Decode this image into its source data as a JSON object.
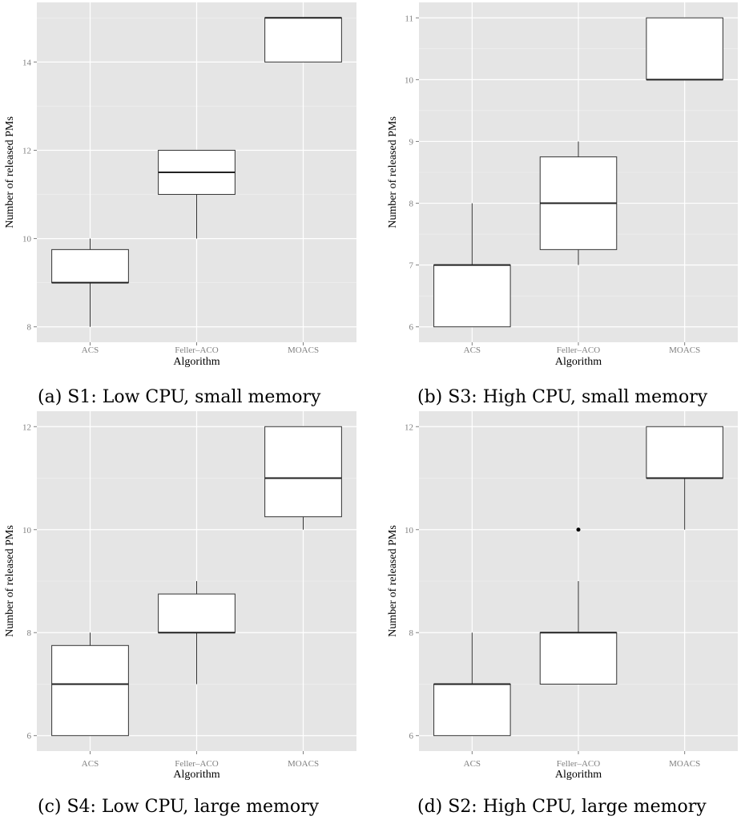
{
  "panels": [
    {
      "caption": "(a) S1: Low CPU, small memory",
      "chart_data": {
        "type": "boxplot",
        "categories": [
          "ACS",
          "Feller–ACO",
          "MOACS"
        ],
        "xlabel": "Algorithm",
        "ylabel": "Number of released PMs",
        "ylim": [
          7.65,
          15.35
        ],
        "yticks": [
          8,
          10,
          12,
          14
        ],
        "grid": true,
        "boxes": [
          {
            "category": "ACS",
            "min": 8,
            "q1": 9,
            "median": 9,
            "q3": 9.75,
            "max": 10,
            "outliers": []
          },
          {
            "category": "Feller–ACO",
            "min": 10,
            "q1": 11,
            "median": 11.5,
            "q3": 12,
            "max": 12,
            "outliers": []
          },
          {
            "category": "MOACS",
            "min": 14,
            "q1": 14,
            "median": 15,
            "q3": 15,
            "max": 15,
            "outliers": []
          }
        ]
      }
    },
    {
      "caption": "(b) S3: High CPU, small memory",
      "chart_data": {
        "type": "boxplot",
        "categories": [
          "ACS",
          "Feller–ACO",
          "MOACS"
        ],
        "xlabel": "Algorithm",
        "ylabel": "Number of released PMs",
        "ylim": [
          5.75,
          11.25
        ],
        "yticks": [
          6,
          7,
          8,
          9,
          10,
          11
        ],
        "grid": true,
        "boxes": [
          {
            "category": "ACS",
            "min": 6,
            "q1": 6,
            "median": 7,
            "q3": 7,
            "max": 8,
            "outliers": []
          },
          {
            "category": "Feller–ACO",
            "min": 7,
            "q1": 7.25,
            "median": 8,
            "q3": 8.75,
            "max": 9,
            "outliers": []
          },
          {
            "category": "MOACS",
            "min": 10,
            "q1": 10,
            "median": 10,
            "q3": 11,
            "max": 11,
            "outliers": []
          }
        ]
      }
    },
    {
      "caption": "(c) S4: Low CPU, large memory",
      "chart_data": {
        "type": "boxplot",
        "categories": [
          "ACS",
          "Feller–ACO",
          "MOACS"
        ],
        "xlabel": "Algorithm",
        "ylabel": "Number of released PMs",
        "ylim": [
          5.7,
          12.3
        ],
        "yticks": [
          6,
          8,
          10,
          12
        ],
        "grid": true,
        "boxes": [
          {
            "category": "ACS",
            "min": 6,
            "q1": 6,
            "median": 7,
            "q3": 7.75,
            "max": 8,
            "outliers": []
          },
          {
            "category": "Feller–ACO",
            "min": 7,
            "q1": 8,
            "median": 8,
            "q3": 8.75,
            "max": 9,
            "outliers": []
          },
          {
            "category": "MOACS",
            "min": 10,
            "q1": 10.25,
            "median": 11,
            "q3": 12,
            "max": 12,
            "outliers": []
          }
        ]
      }
    },
    {
      "caption": "(d) S2: High CPU, large memory",
      "chart_data": {
        "type": "boxplot",
        "categories": [
          "ACS",
          "Feller–ACO",
          "MOACS"
        ],
        "xlabel": "Algorithm",
        "ylabel": "Number of released PMs",
        "ylim": [
          5.7,
          12.3
        ],
        "yticks": [
          6,
          8,
          10,
          12
        ],
        "grid": true,
        "boxes": [
          {
            "category": "ACS",
            "min": 6,
            "q1": 6,
            "median": 7,
            "q3": 7,
            "max": 8,
            "outliers": []
          },
          {
            "category": "Feller–ACO",
            "min": 7,
            "q1": 7,
            "median": 8,
            "q3": 8,
            "max": 9,
            "outliers": [
              10
            ]
          },
          {
            "category": "MOACS",
            "min": 10,
            "q1": 11,
            "median": 11,
            "q3": 12,
            "max": 12,
            "outliers": []
          }
        ]
      }
    }
  ]
}
